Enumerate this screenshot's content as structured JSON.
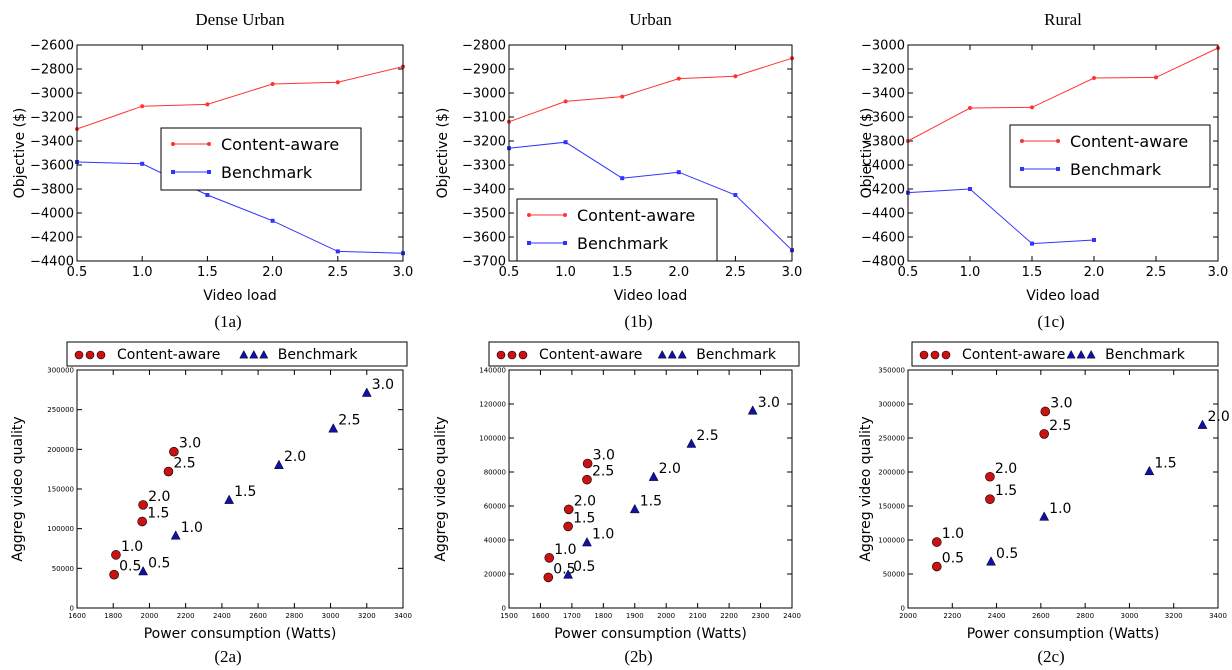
{
  "chart_data": [
    {
      "id": "1a",
      "caption": "(1a)",
      "type": "line",
      "title": "Dense Urban",
      "xlabel": "Video load",
      "ylabel": "Objective ($)",
      "xlim": [
        0.5,
        3.0
      ],
      "ylim": [
        -4400,
        -2600
      ],
      "xticks": [
        0.5,
        1.0,
        1.5,
        2.0,
        2.5,
        3.0
      ],
      "xtick_labels": [
        "0.5",
        "1.0",
        "1.5",
        "2.0",
        "2.5",
        "3.0"
      ],
      "yticks": [
        -2600,
        -2800,
        -3000,
        -3200,
        -3400,
        -3600,
        -3800,
        -4000,
        -4200,
        -4400
      ],
      "ytick_labels": [
        "−2600",
        "−2800",
        "−3000",
        "−3200",
        "−3400",
        "−3600",
        "−3800",
        "−4000",
        "−4200",
        "−4400"
      ],
      "legend": "center-right",
      "series": [
        {
          "name": "Content-aware",
          "color": "#ff3333",
          "x": [
            0.5,
            1.0,
            1.5,
            2.0,
            2.5,
            3.0
          ],
          "y": [
            -3300,
            -3110,
            -3095,
            -2925,
            -2910,
            -2780
          ]
        },
        {
          "name": "Benchmark",
          "color": "#3333ff",
          "x": [
            0.5,
            1.0,
            1.5,
            2.0,
            2.5,
            3.0
          ],
          "y": [
            -3575,
            -3590,
            -3850,
            -4065,
            -4320,
            -4335
          ]
        }
      ]
    },
    {
      "id": "1b",
      "caption": "(1b)",
      "type": "line",
      "title": "Urban",
      "xlabel": "Video load",
      "ylabel": "Objective ($)",
      "xlim": [
        0.5,
        3.0
      ],
      "ylim": [
        -3700,
        -2800
      ],
      "xticks": [
        0.5,
        1.0,
        1.5,
        2.0,
        2.5,
        3.0
      ],
      "xtick_labels": [
        "0.5",
        "1.0",
        "1.5",
        "2.0",
        "2.5",
        "3.0"
      ],
      "yticks": [
        -2800,
        -2900,
        -3000,
        -3100,
        -3200,
        -3300,
        -3400,
        -3500,
        -3600,
        -3700
      ],
      "ytick_labels": [
        "−2800",
        "−2900",
        "−3000",
        "−3100",
        "−3200",
        "−3300",
        "−3400",
        "−3500",
        "−3600",
        "−3700"
      ],
      "legend": "lower-left",
      "series": [
        {
          "name": "Content-aware",
          "color": "#ff3333",
          "x": [
            0.5,
            1.0,
            1.5,
            2.0,
            2.5,
            3.0
          ],
          "y": [
            -3120,
            -3035,
            -3015,
            -2940,
            -2930,
            -2855
          ]
        },
        {
          "name": "Benchmark",
          "color": "#3333ff",
          "x": [
            0.5,
            1.0,
            1.5,
            2.0,
            2.5,
            3.0
          ],
          "y": [
            -3230,
            -3205,
            -3355,
            -3330,
            -3425,
            -3655
          ]
        }
      ]
    },
    {
      "id": "1c",
      "caption": "(1c)",
      "type": "line",
      "title": "Rural",
      "xlabel": "Video load",
      "ylabel": "Objective ($)",
      "xlim": [
        0.5,
        3.0
      ],
      "ylim": [
        -4800,
        -3000
      ],
      "xticks": [
        0.5,
        1.0,
        1.5,
        2.0,
        2.5,
        3.0
      ],
      "xtick_labels": [
        "0.5",
        "1.0",
        "1.5",
        "2.0",
        "2.5",
        "3.0"
      ],
      "yticks": [
        -3000,
        -3200,
        -3400,
        -3600,
        -3800,
        -4000,
        -4200,
        -4400,
        -4600,
        -4800
      ],
      "ytick_labels": [
        "−3000",
        "−3200",
        "−3400",
        "−3600",
        "−3800",
        "−4000",
        "−4200",
        "−4400",
        "−4600",
        "−4800"
      ],
      "legend": "center-right",
      "series": [
        {
          "name": "Content-aware",
          "color": "#ff3333",
          "x": [
            0.5,
            1.0,
            1.5,
            2.0,
            2.5,
            3.0
          ],
          "y": [
            -3800,
            -3525,
            -3520,
            -3275,
            -3270,
            -3025
          ]
        },
        {
          "name": "Benchmark",
          "color": "#3333ff",
          "x": [
            0.5,
            1.0,
            1.5,
            2.0
          ],
          "y": [
            -4230,
            -4200,
            -4655,
            -4625
          ]
        }
      ]
    },
    {
      "id": "2a",
      "caption": "(2a)",
      "type": "scatter",
      "xlabel": "Power consumption (Watts)",
      "ylabel": "Aggreg video quality",
      "xlim": [
        1600,
        3400
      ],
      "ylim": [
        0,
        300000
      ],
      "xticks": [
        1600,
        1800,
        2000,
        2200,
        2400,
        2600,
        2800,
        3000,
        3200,
        3400
      ],
      "xtick_labels": [
        "1600",
        "1800",
        "2000",
        "2200",
        "2400",
        "2600",
        "2800",
        "3000",
        "3200",
        "3400"
      ],
      "yticks": [
        0,
        50000,
        100000,
        150000,
        200000,
        250000,
        300000
      ],
      "ytick_labels": [
        "0",
        "50000",
        "100000",
        "150000",
        "200000",
        "250000",
        "300000"
      ],
      "legend": "top-outside",
      "series": [
        {
          "name": "Content-aware",
          "marker": "circle",
          "color": "#cc1111",
          "x": [
            1805,
            1815,
            1960,
            1965,
            2105,
            2135
          ],
          "y": [
            42000,
            67000,
            109000,
            130000,
            172000,
            197000
          ],
          "labels": [
            "0.5",
            "1.0",
            "1.5",
            "2.0",
            "2.5",
            "3.0"
          ]
        },
        {
          "name": "Benchmark",
          "marker": "triangle",
          "color": "#1111aa",
          "x": [
            1965,
            2145,
            2440,
            2715,
            3015,
            3200
          ],
          "y": [
            46000,
            91000,
            136000,
            180000,
            226000,
            271000
          ],
          "labels": [
            "0.5",
            "1.0",
            "1.5",
            "2.0",
            "2.5",
            "3.0"
          ]
        }
      ]
    },
    {
      "id": "2b",
      "caption": "(2b)",
      "type": "scatter",
      "xlabel": "Power consumption (Watts)",
      "ylabel": "Aggreg video quality",
      "xlim": [
        1500,
        2400
      ],
      "ylim": [
        0,
        140000
      ],
      "xticks": [
        1500,
        1600,
        1700,
        1800,
        1900,
        2000,
        2100,
        2200,
        2300,
        2400
      ],
      "xtick_labels": [
        "1500",
        "1600",
        "1700",
        "1800",
        "1900",
        "2000",
        "2100",
        "2200",
        "2300",
        "2400"
      ],
      "yticks": [
        0,
        20000,
        40000,
        60000,
        80000,
        100000,
        120000,
        140000
      ],
      "ytick_labels": [
        "0",
        "20000",
        "40000",
        "60000",
        "80000",
        "100000",
        "120000",
        "140000"
      ],
      "legend": "top-outside",
      "series": [
        {
          "name": "Content-aware",
          "marker": "circle",
          "color": "#cc1111",
          "x": [
            1625,
            1628,
            1688,
            1690,
            1748,
            1750
          ],
          "y": [
            18000,
            29500,
            48000,
            58000,
            75500,
            85000
          ],
          "labels": [
            "0.5",
            "1.0",
            "1.5",
            "2.0",
            "2.5",
            "3.0"
          ]
        },
        {
          "name": "Benchmark",
          "marker": "triangle",
          "color": "#1111aa",
          "x": [
            1688,
            1748,
            1900,
            1960,
            2080,
            2275
          ],
          "y": [
            19500,
            38500,
            58000,
            77000,
            96500,
            116000
          ],
          "labels": [
            "0.5",
            "1.0",
            "1.5",
            "2.0",
            "2.5",
            "3.0"
          ]
        }
      ]
    },
    {
      "id": "2c",
      "caption": "(2c)",
      "type": "scatter",
      "xlabel": "Power consumption (Watts)",
      "ylabel": "Aggreg video quality",
      "xlim": [
        2000,
        3400
      ],
      "ylim": [
        0,
        350000
      ],
      "xticks": [
        2000,
        2200,
        2400,
        2600,
        2800,
        3000,
        3200,
        3400
      ],
      "xtick_labels": [
        "2000",
        "2200",
        "2400",
        "2600",
        "2800",
        "3000",
        "3200",
        "3400"
      ],
      "yticks": [
        0,
        50000,
        100000,
        150000,
        200000,
        250000,
        300000,
        350000
      ],
      "ytick_labels": [
        "0",
        "50000",
        "100000",
        "150000",
        "200000",
        "250000",
        "300000",
        "350000"
      ],
      "legend": "top-outside",
      "series": [
        {
          "name": "Content-aware",
          "marker": "circle",
          "color": "#cc1111",
          "x": [
            2130,
            2130,
            2370,
            2370,
            2615,
            2620
          ],
          "y": [
            61000,
            97000,
            160000,
            193000,
            256000,
            289000
          ],
          "labels": [
            "0.5",
            "1.0",
            "1.5",
            "2.0",
            "2.5",
            "3.0"
          ]
        },
        {
          "name": "Benchmark",
          "marker": "triangle",
          "color": "#1111aa",
          "x": [
            2375,
            2615,
            3090,
            3330
          ],
          "y": [
            68000,
            134000,
            201000,
            269000
          ],
          "labels": [
            "0.5",
            "1.0",
            "1.5",
            "2.0"
          ]
        }
      ]
    }
  ]
}
